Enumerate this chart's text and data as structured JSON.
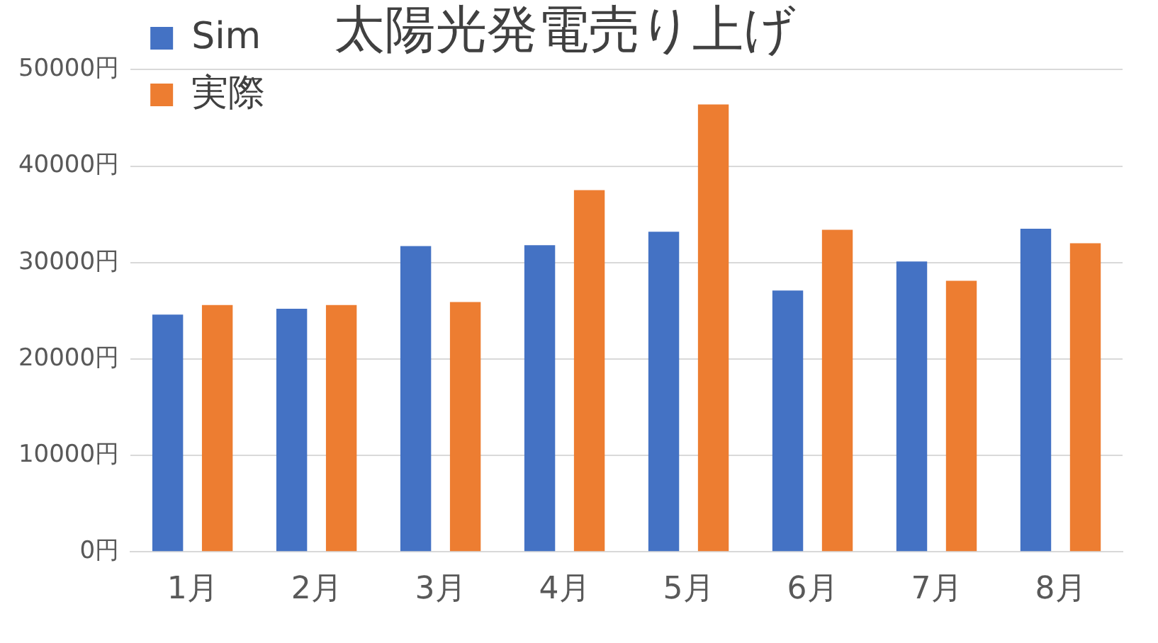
{
  "chart_data": {
    "type": "bar",
    "title": "太陽光発電売り上げ",
    "categories": [
      "1月",
      "2月",
      "3月",
      "4月",
      "5月",
      "6月",
      "7月",
      "8月"
    ],
    "series": [
      {
        "name": "Sim",
        "color": "#4472c4",
        "values": [
          24600,
          25200,
          31700,
          31800,
          33200,
          27100,
          30100,
          33500
        ]
      },
      {
        "name": "実際",
        "color": "#ed7d31",
        "values": [
          25600,
          25600,
          25900,
          37500,
          46400,
          33400,
          28100,
          32000
        ]
      }
    ],
    "ylim": [
      0,
      50000
    ],
    "yticks": [
      {
        "value": 0,
        "label": "0円"
      },
      {
        "value": 10000,
        "label": "10000円"
      },
      {
        "value": 20000,
        "label": "20000円"
      },
      {
        "value": 30000,
        "label": "30000円"
      },
      {
        "value": 40000,
        "label": "40000円"
      },
      {
        "value": 50000,
        "label": "50000円"
      }
    ],
    "grid": "y",
    "legend": "top left"
  }
}
